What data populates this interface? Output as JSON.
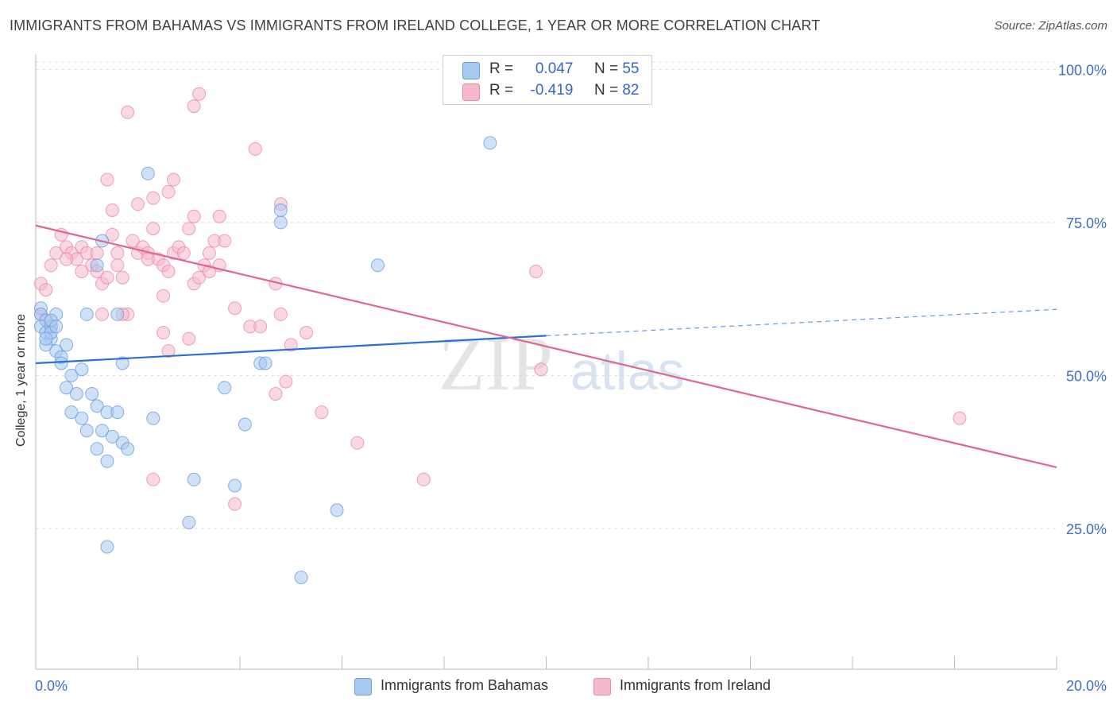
{
  "title": "IMMIGRANTS FROM BAHAMAS VS IMMIGRANTS FROM IRELAND COLLEGE, 1 YEAR OR MORE CORRELATION CHART",
  "source": "Source: ZipAtlas.com",
  "watermark": {
    "zip": "ZIP",
    "atlas": "atlas"
  },
  "legend": {
    "r_label": "R =",
    "n_label": "N =",
    "rows": [
      {
        "r": "0.047",
        "n": "55",
        "color": "#a8c8f0"
      },
      {
        "r": "-0.419",
        "n": "82",
        "color": "#f5b8cc"
      }
    ]
  },
  "colors": {
    "bahamas_fill": "#a8c8f0",
    "bahamas_stroke": "#6a9ede",
    "bahamas_line": "#2a6fd6",
    "ireland_fill": "#f5b8cc",
    "ireland_stroke": "#e88aaa",
    "ireland_line": "#e06593",
    "tick_label": "#3a6fc4"
  },
  "chart_data": {
    "type": "scatter",
    "title": "IMMIGRANTS FROM BAHAMAS VS IMMIGRANTS FROM IRELAND COLLEGE, 1 YEAR OR MORE CORRELATION CHART",
    "xlabel": "",
    "ylabel": "College, 1 year or more",
    "xlim": [
      0,
      20
    ],
    "ylim": [
      2,
      102
    ],
    "x_tick_labels": [
      "0.0%",
      "20.0%"
    ],
    "y_ticks": [
      25,
      50,
      75,
      100
    ],
    "y_tick_labels": [
      "25.0%",
      "50.0%",
      "75.0%",
      "100.0%"
    ],
    "grid": true,
    "legend_position": "top-center",
    "series": [
      {
        "name": "Immigrants from Bahamas",
        "points": [
          [
            0.1,
            61
          ],
          [
            0.1,
            60
          ],
          [
            0.2,
            59
          ],
          [
            0.1,
            58
          ],
          [
            0.2,
            57
          ],
          [
            0.3,
            58
          ],
          [
            0.4,
            60
          ],
          [
            0.3,
            56
          ],
          [
            0.2,
            55
          ],
          [
            0.4,
            54
          ],
          [
            0.5,
            53
          ],
          [
            0.6,
            55
          ],
          [
            0.5,
            52
          ],
          [
            0.7,
            50
          ],
          [
            0.9,
            51
          ],
          [
            1.0,
            60
          ],
          [
            0.6,
            48
          ],
          [
            0.8,
            47
          ],
          [
            1.1,
            47
          ],
          [
            1.2,
            45
          ],
          [
            0.9,
            43
          ],
          [
            1.4,
            44
          ],
          [
            1.6,
            44
          ],
          [
            1.3,
            41
          ],
          [
            1.5,
            40
          ],
          [
            1.7,
            39
          ],
          [
            1.2,
            38
          ],
          [
            1.4,
            36
          ],
          [
            1.8,
            38
          ],
          [
            0.7,
            44
          ],
          [
            1.0,
            41
          ],
          [
            1.6,
            60
          ],
          [
            1.7,
            52
          ],
          [
            2.2,
            83
          ],
          [
            1.3,
            72
          ],
          [
            1.2,
            68
          ],
          [
            2.3,
            43
          ],
          [
            3.7,
            48
          ],
          [
            4.1,
            42
          ],
          [
            3.1,
            33
          ],
          [
            3.9,
            32
          ],
          [
            3.0,
            26
          ],
          [
            1.4,
            22
          ],
          [
            4.4,
            52
          ],
          [
            4.5,
            52
          ],
          [
            4.8,
            75
          ],
          [
            4.8,
            77
          ],
          [
            5.2,
            17
          ],
          [
            5.9,
            28
          ],
          [
            6.7,
            68
          ],
          [
            8.9,
            88
          ],
          [
            0.3,
            57
          ],
          [
            0.2,
            56
          ],
          [
            0.3,
            59
          ],
          [
            0.4,
            58
          ]
        ]
      },
      {
        "name": "Immigrants from Ireland",
        "points": [
          [
            0.1,
            65
          ],
          [
            0.2,
            64
          ],
          [
            0.3,
            68
          ],
          [
            0.4,
            70
          ],
          [
            0.6,
            71
          ],
          [
            0.5,
            73
          ],
          [
            0.7,
            70
          ],
          [
            0.8,
            69
          ],
          [
            0.9,
            71
          ],
          [
            1.0,
            70
          ],
          [
            1.1,
            68
          ],
          [
            1.2,
            67
          ],
          [
            1.3,
            65
          ],
          [
            1.4,
            66
          ],
          [
            1.5,
            73
          ],
          [
            1.6,
            70
          ],
          [
            1.7,
            66
          ],
          [
            1.8,
            60
          ],
          [
            1.9,
            72
          ],
          [
            2.0,
            70
          ],
          [
            2.1,
            71
          ],
          [
            2.2,
            70
          ],
          [
            2.3,
            74
          ],
          [
            2.4,
            69
          ],
          [
            2.5,
            68
          ],
          [
            2.6,
            67
          ],
          [
            2.7,
            70
          ],
          [
            2.8,
            71
          ],
          [
            2.9,
            70
          ],
          [
            3.0,
            74
          ],
          [
            3.1,
            65
          ],
          [
            3.2,
            66
          ],
          [
            3.3,
            68
          ],
          [
            3.4,
            70
          ],
          [
            3.5,
            72
          ],
          [
            3.6,
            76
          ],
          [
            3.7,
            72
          ],
          [
            1.4,
            82
          ],
          [
            1.5,
            77
          ],
          [
            2.0,
            78
          ],
          [
            2.3,
            79
          ],
          [
            2.6,
            80
          ],
          [
            2.7,
            82
          ],
          [
            3.1,
            76
          ],
          [
            3.4,
            67
          ],
          [
            3.6,
            68
          ],
          [
            3.9,
            61
          ],
          [
            4.2,
            58
          ],
          [
            4.4,
            58
          ],
          [
            4.7,
            65
          ],
          [
            4.8,
            60
          ],
          [
            5.0,
            55
          ],
          [
            5.3,
            57
          ],
          [
            1.8,
            93
          ],
          [
            3.1,
            94
          ],
          [
            3.2,
            96
          ],
          [
            4.3,
            87
          ],
          [
            4.8,
            78
          ],
          [
            2.5,
            63
          ],
          [
            2.5,
            57
          ],
          [
            2.6,
            54
          ],
          [
            3.0,
            56
          ],
          [
            4.7,
            47
          ],
          [
            4.9,
            49
          ],
          [
            5.6,
            44
          ],
          [
            6.3,
            39
          ],
          [
            9.9,
            51
          ],
          [
            9.8,
            67
          ],
          [
            1.3,
            60
          ],
          [
            1.7,
            60
          ],
          [
            2.3,
            33
          ],
          [
            3.9,
            29
          ],
          [
            7.6,
            33
          ],
          [
            18.1,
            43
          ],
          [
            0.1,
            60
          ],
          [
            0.2,
            59
          ],
          [
            0.3,
            58
          ],
          [
            0.6,
            69
          ],
          [
            0.9,
            67
          ],
          [
            1.2,
            70
          ],
          [
            1.6,
            68
          ],
          [
            2.2,
            69
          ]
        ]
      }
    ],
    "trend_lines": [
      {
        "series": "Immigrants from Bahamas",
        "x": [
          0,
          10
        ],
        "y": [
          52,
          56.5
        ],
        "dashed_extension_to": 20,
        "dashed_y_end": 60.8
      },
      {
        "series": "Immigrants from Ireland",
        "x": [
          0,
          20
        ],
        "y": [
          74.5,
          35
        ]
      }
    ]
  }
}
